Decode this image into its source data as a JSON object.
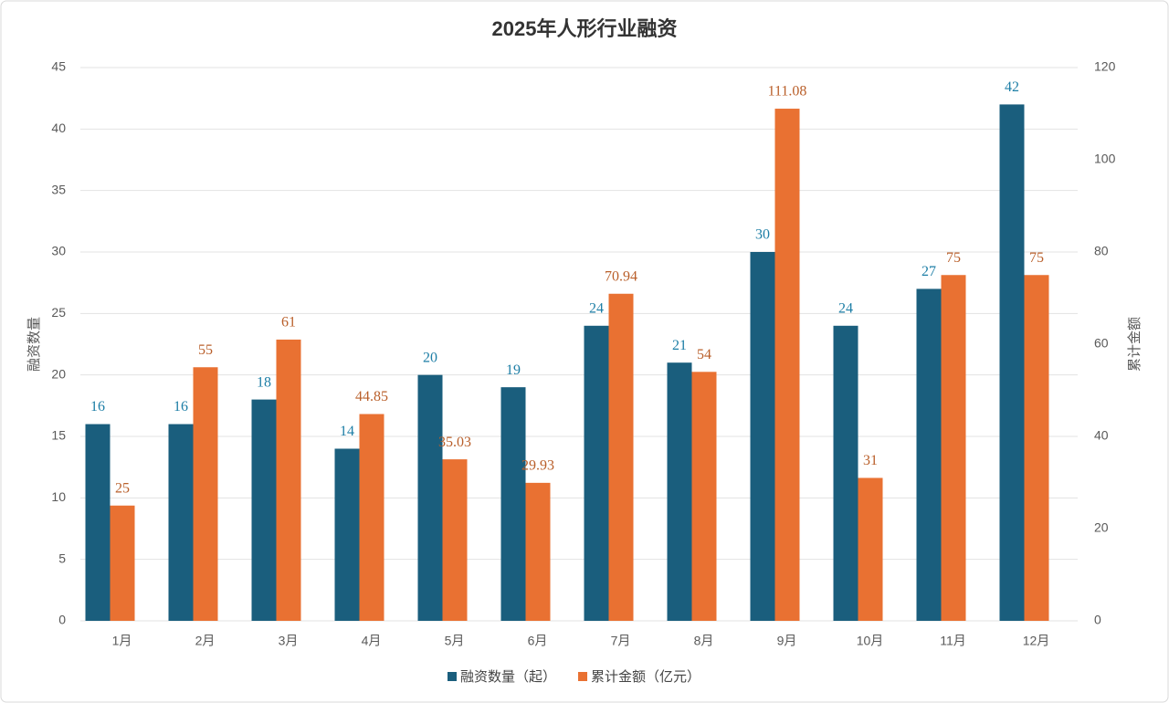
{
  "chart_data": {
    "type": "bar",
    "title": "2025年人形行业融资",
    "categories": [
      "1月",
      "2月",
      "3月",
      "4月",
      "5月",
      "6月",
      "7月",
      "8月",
      "9月",
      "10月",
      "11月",
      "12月"
    ],
    "series": [
      {
        "name": "融资数量（起）",
        "color": "#1a5e7d",
        "values": [
          16,
          16,
          18,
          14,
          20,
          19,
          24,
          21,
          30,
          24,
          27,
          42
        ]
      },
      {
        "name": "累计金额（亿元）",
        "color": "#e97132",
        "axis": "y2",
        "values": [
          25,
          55,
          61,
          44.85,
          35.03,
          29.93,
          70.94,
          54,
          111.08,
          31,
          75,
          75
        ]
      }
    ],
    "y_label": "融资数量",
    "y2_label": "累计金额",
    "ylim": [
      0,
      45
    ],
    "yticks": [
      0,
      5,
      10,
      15,
      20,
      25,
      30,
      35,
      40,
      45
    ],
    "y2lim": [
      0,
      120
    ],
    "y2ticks": [
      0,
      20,
      40,
      60,
      80,
      100,
      120
    ],
    "grid": true,
    "legend": "bottom"
  }
}
